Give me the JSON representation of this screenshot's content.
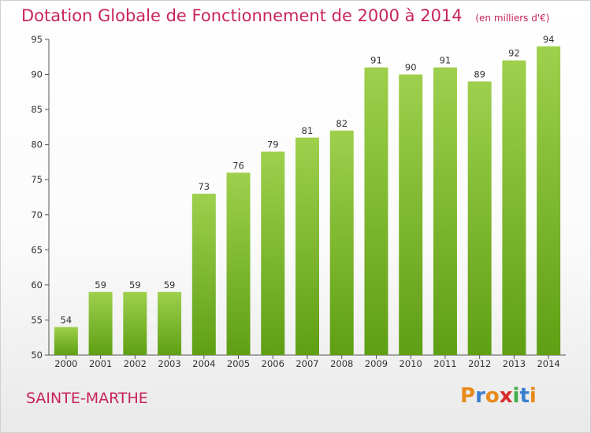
{
  "header": {
    "title": "Dotation Globale de Fonctionnement de 2000 à 2014",
    "unit": "(en milliers d'€)"
  },
  "footer": {
    "place": "SAINTE-MARTHE"
  },
  "logo": {
    "text": "Proxiti",
    "colors": [
      "#e88a1a",
      "#3a7fcf",
      "#e88a1a",
      "#d92b2b",
      "#3fae49",
      "#3a7fcf",
      "#e88a1a"
    ]
  },
  "chart_data": {
    "type": "bar",
    "categories": [
      "2000",
      "2001",
      "2002",
      "2003",
      "2004",
      "2005",
      "2006",
      "2007",
      "2008",
      "2009",
      "2010",
      "2011",
      "2012",
      "2013",
      "2014"
    ],
    "values": [
      54,
      59,
      59,
      59,
      73,
      76,
      79,
      81,
      82,
      91,
      90,
      91,
      89,
      92,
      94
    ],
    "ylim": [
      50,
      95
    ],
    "yticks": [
      50,
      55,
      60,
      65,
      70,
      75,
      80,
      85,
      90,
      95
    ],
    "grid": false,
    "bar_color_top": "#9ed04d",
    "bar_color_bottom": "#5f9f14"
  }
}
